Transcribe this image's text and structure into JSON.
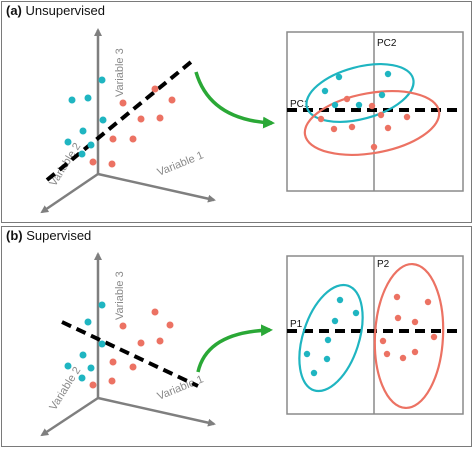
{
  "panels": [
    {
      "letter": "(a)",
      "title": "Unsupervised",
      "axes": [
        "Variable 1",
        "Variable 2",
        "Variable 3"
      ],
      "component_labels": [
        "PC1",
        "PC2"
      ]
    },
    {
      "letter": "(b)",
      "title": "Supervised",
      "axes": [
        "Variable 1",
        "Variable 2",
        "Variable 3"
      ],
      "component_labels": [
        "P1",
        "P2"
      ]
    }
  ],
  "colors": {
    "class_a": "#1fb5c1",
    "class_b": "#ec7263",
    "arrow": "#2aa836",
    "axis": "#7f7f7f",
    "dashed_line": "#000000",
    "box_border": "#8a8a8a"
  }
}
